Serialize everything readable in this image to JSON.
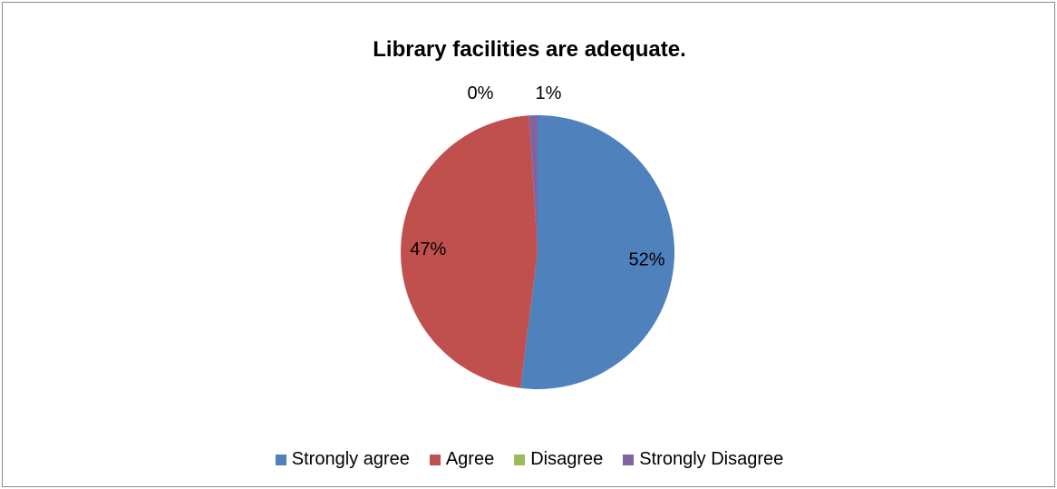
{
  "chart_data": {
    "type": "pie",
    "title": "Library facilities are adequate.",
    "categories": [
      "Strongly agree",
      "Agree",
      "Disagree",
      "Strongly Disagree"
    ],
    "values": [
      52,
      47,
      0,
      1
    ],
    "data_labels": [
      "52%",
      "47%",
      "0%",
      "1%"
    ],
    "colors": [
      "#4f81bd",
      "#c0504d",
      "#9bbb59",
      "#8064a2"
    ],
    "legend": "bottom"
  }
}
